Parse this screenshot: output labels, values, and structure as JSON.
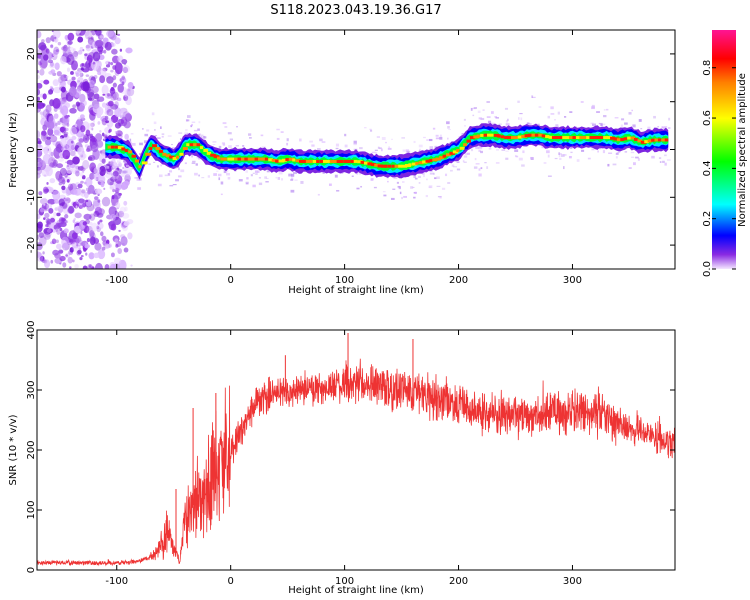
{
  "title": "S118.2023.043.19.36.G17",
  "chart_data": [
    {
      "type": "heatmap",
      "name": "spectrogram",
      "xlabel": "Height of straight line (km)",
      "ylabel": "Frequency (Hz)",
      "xlim": [
        -170,
        390
      ],
      "ylim": [
        -25,
        25
      ],
      "xticks": [
        -100,
        0,
        100,
        200,
        300
      ],
      "yticks": [
        -20,
        -10,
        0,
        10,
        20
      ],
      "colorbar": {
        "label": "Normalized spectral amplitude",
        "range": [
          0,
          0.95
        ],
        "ticks": [
          0.0,
          0.2,
          0.4,
          0.6,
          0.8
        ],
        "tick_labels": [
          "0.0",
          "0.2",
          "0.4",
          "0.6",
          "0.8"
        ],
        "colors": [
          "#f4e6ff",
          "#8a2be2",
          "#0000ff",
          "#00ffff",
          "#00ff00",
          "#ffff00",
          "#ff8000",
          "#ff0000",
          "#ff1493"
        ]
      },
      "noise_region_x": [
        -170,
        -100
      ],
      "ridge": {
        "x": [
          -110,
          -100,
          -90,
          -85,
          -80,
          -75,
          -70,
          -60,
          -50,
          -45,
          -40,
          -30,
          -20,
          -10,
          0,
          10,
          20,
          30,
          40,
          50,
          60,
          70,
          80,
          90,
          100,
          110,
          120,
          130,
          140,
          150,
          160,
          170,
          180,
          190,
          200,
          210,
          220,
          230,
          240,
          250,
          260,
          270,
          280,
          290,
          300,
          310,
          320,
          330,
          340,
          350,
          360,
          370,
          380,
          385
        ],
        "y": [
          0.5,
          0.5,
          -0.5,
          -2,
          -4,
          -1,
          1,
          -1,
          -2,
          -1,
          1,
          1,
          -1,
          -2,
          -2,
          -2,
          -2,
          -2,
          -2.5,
          -2,
          -2.5,
          -2.5,
          -2.5,
          -2.5,
          -2.5,
          -2.5,
          -3,
          -3.5,
          -3.5,
          -3.5,
          -3,
          -2.5,
          -2,
          -1,
          0,
          2.5,
          3,
          3,
          2.5,
          2.5,
          3,
          3,
          2.5,
          2.5,
          2.5,
          2.5,
          2.5,
          2.5,
          2,
          2.5,
          1.5,
          2,
          2,
          2
        ]
      }
    },
    {
      "type": "line",
      "name": "snr",
      "xlabel": "Height of straight line (km)",
      "ylabel": "SNR (10 * v/v)",
      "xlim": [
        -170,
        390
      ],
      "ylim": [
        0,
        400
      ],
      "xticks": [
        -100,
        0,
        100,
        200,
        300
      ],
      "yticks": [
        0,
        100,
        200,
        300,
        400
      ],
      "color": "#ee3333",
      "envelope": {
        "x": [
          -170,
          -100,
          -80,
          -70,
          -60,
          -55,
          -50,
          -45,
          -40,
          -30,
          -20,
          -10,
          0,
          10,
          20,
          30,
          40,
          60,
          80,
          100,
          120,
          140,
          160,
          180,
          200,
          220,
          240,
          260,
          280,
          300,
          320,
          340,
          360,
          380,
          390
        ],
        "y": [
          12,
          12,
          15,
          22,
          40,
          70,
          35,
          15,
          80,
          120,
          150,
          180,
          200,
          235,
          270,
          290,
          295,
          300,
          305,
          308,
          308,
          305,
          298,
          288,
          275,
          265,
          258,
          258,
          262,
          265,
          258,
          245,
          232,
          215,
          205
        ]
      },
      "spikes": [
        {
          "x": -48,
          "y": 135
        },
        {
          "x": -33,
          "y": 270
        },
        {
          "x": -13,
          "y": 295
        },
        {
          "x": 48,
          "y": 358
        },
        {
          "x": 103,
          "y": 395
        },
        {
          "x": 160,
          "y": 385
        }
      ]
    }
  ]
}
